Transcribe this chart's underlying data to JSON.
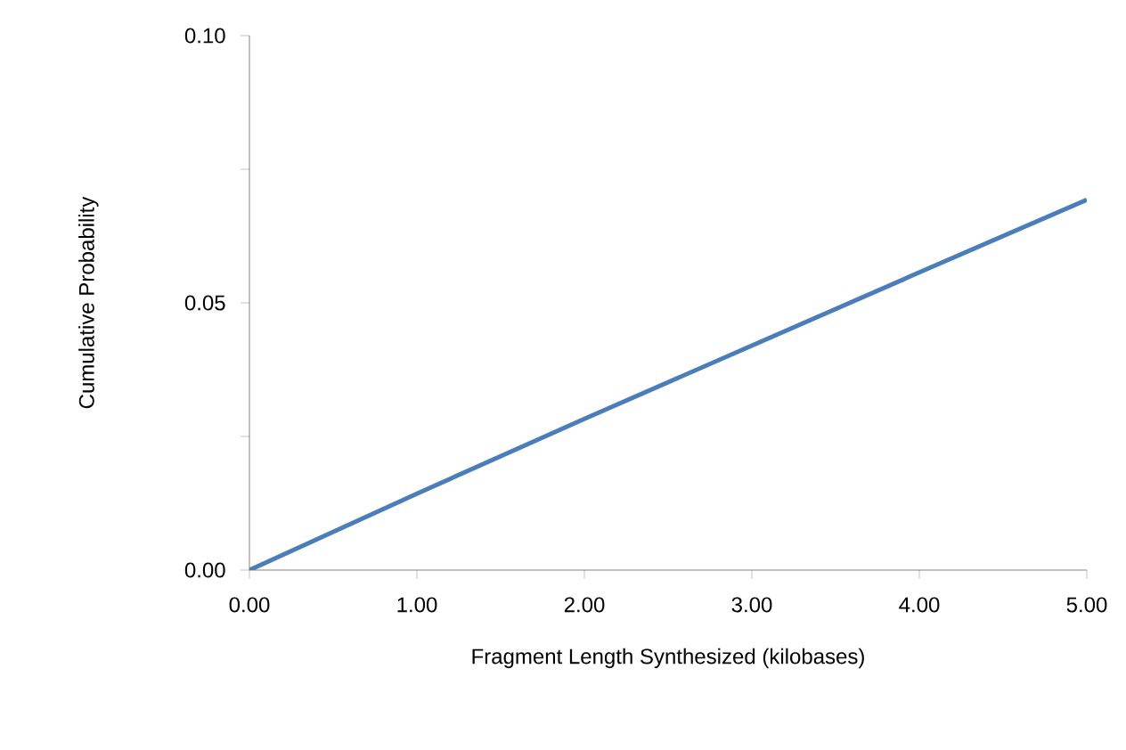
{
  "chart_data": {
    "type": "line",
    "xlabel": "Fragment Length Synthesized (kilobases)",
    "ylabel": "Cumulative Probability",
    "x": [
      0,
      1,
      2,
      3,
      4,
      5
    ],
    "series": [
      {
        "color": "#4a7ebb",
        "values": [
          0,
          0.0143,
          0.0283,
          0.042,
          0.0557,
          0.0693
        ]
      }
    ],
    "xlim": [
      0,
      5
    ],
    "ylim": [
      0,
      0.1
    ],
    "xticks": [
      {
        "value": 0,
        "label": "0.00"
      },
      {
        "value": 1,
        "label": "1.00"
      },
      {
        "value": 2,
        "label": "2.00"
      },
      {
        "value": 3,
        "label": "3.00"
      },
      {
        "value": 4,
        "label": "4.00"
      },
      {
        "value": 5,
        "label": "5.00"
      }
    ],
    "yticks": [
      {
        "value": 0,
        "label": "0.00"
      },
      {
        "value": 0.025,
        "label": null
      },
      {
        "value": 0.05,
        "label": "0.05"
      },
      {
        "value": 0.075,
        "label": null
      },
      {
        "value": 0.1,
        "label": "0.10"
      }
    ],
    "grid": false,
    "marker": "none",
    "line_style": "solid"
  }
}
